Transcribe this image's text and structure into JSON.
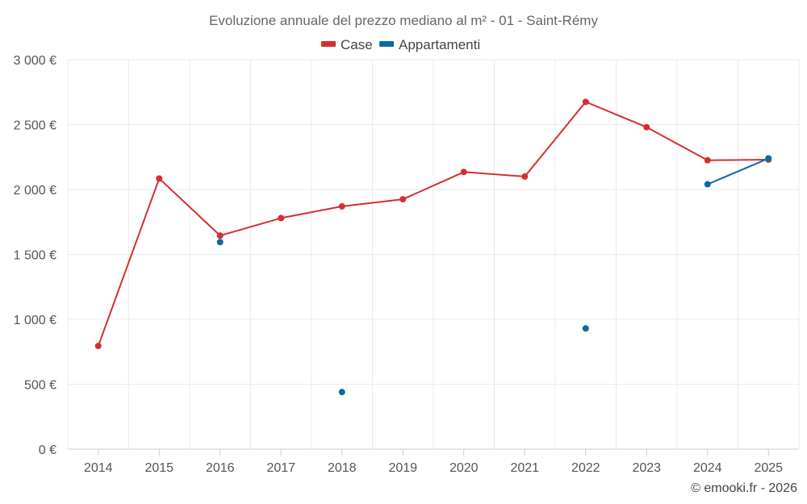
{
  "chart_data": {
    "type": "line",
    "title": "Evoluzione annuale del prezzo mediano al m² - 01 - Saint-Rémy",
    "categories": [
      "2014",
      "2015",
      "2016",
      "2017",
      "2018",
      "2019",
      "2020",
      "2021",
      "2022",
      "2023",
      "2024",
      "2025"
    ],
    "y_tick_labels": [
      "0 €",
      "500 €",
      "1 000 €",
      "1 500 €",
      "2 000 €",
      "2 500 €",
      "3 000 €"
    ],
    "y_tick_values": [
      0,
      500,
      1000,
      1500,
      2000,
      2500,
      3000
    ],
    "ylim": [
      0,
      3000
    ],
    "grid": true,
    "legend_position": "top-center",
    "series": [
      {
        "name": "Case",
        "color": "#d32f2f",
        "values": [
          795,
          2085,
          1645,
          1780,
          1870,
          1925,
          2135,
          2100,
          2675,
          2480,
          2225,
          2230
        ]
      },
      {
        "name": "Appartamenti",
        "color": "#0b6aa2",
        "values": [
          null,
          null,
          1595,
          null,
          440,
          null,
          null,
          null,
          930,
          null,
          2040,
          2240
        ]
      }
    ]
  },
  "credit": "© emooki.fr - 2026"
}
